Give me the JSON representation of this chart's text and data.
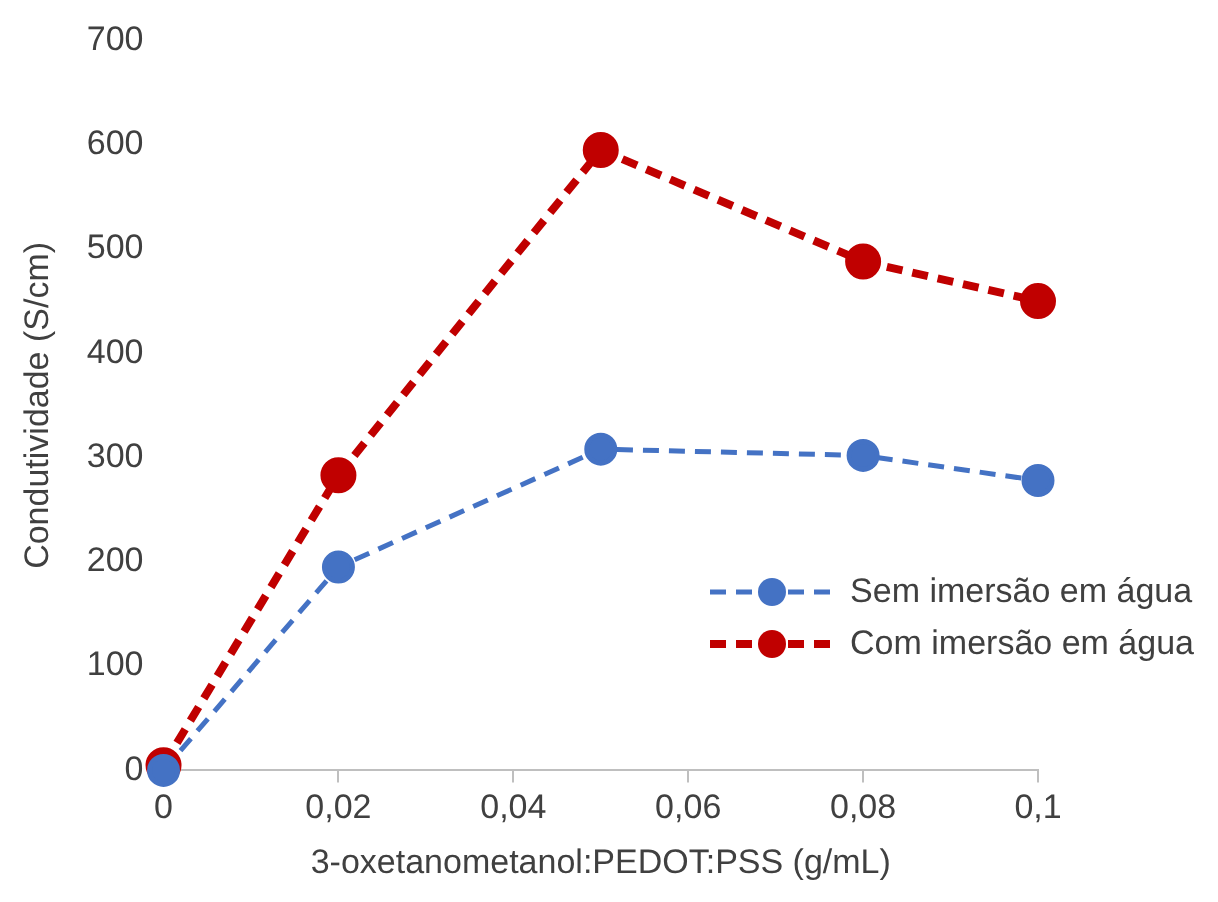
{
  "chart_data": {
    "type": "line",
    "xlabel": "3-oxetanometanol:PEDOT:PSS (g/mL)",
    "ylabel": "Condutividade (S/cm)",
    "x": [
      0,
      0.02,
      0.05,
      0.08,
      0.1
    ],
    "series": [
      {
        "name": "Sem imersão em água",
        "color": "#4472c4",
        "values": [
          0,
          195,
          308,
          302,
          278
        ],
        "line_style": "dashed"
      },
      {
        "name": "Com imersão em água",
        "color": "#c00000",
        "values": [
          5,
          283,
          595,
          488,
          450
        ],
        "line_style": "dashed"
      }
    ],
    "xlim": [
      0,
      0.1
    ],
    "xticks": [
      0,
      {
        "value": 0.02,
        "label": "0,02"
      },
      {
        "value": 0.04,
        "label": "0,04"
      },
      {
        "value": 0.06,
        "label": "0,06"
      },
      {
        "value": 0.08,
        "label": "0,08"
      },
      {
        "value": 0.1,
        "label": "0,1"
      }
    ],
    "ylim": [
      0,
      700
    ],
    "yticks": [
      0,
      100,
      200,
      300,
      400,
      500,
      600,
      700
    ],
    "grid": false,
    "legend": "bottom right",
    "marker": "circle"
  }
}
